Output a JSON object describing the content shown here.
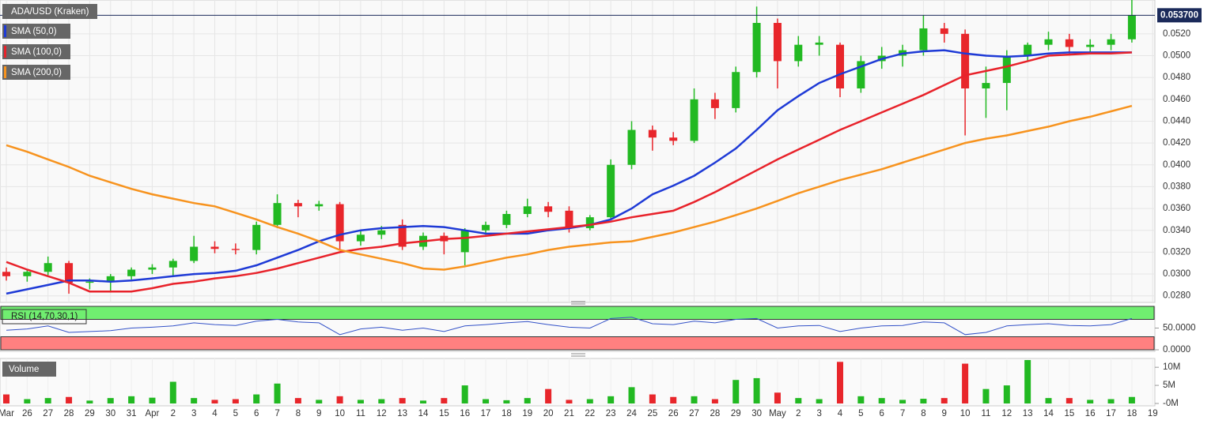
{
  "chart_data": {
    "type": "candlestick",
    "title": "ADA/USD (Kraken)",
    "categories": [
      "Mar",
      "26",
      "27",
      "28",
      "29",
      "30",
      "31",
      "Apr",
      "2",
      "3",
      "4",
      "5",
      "6",
      "7",
      "8",
      "9",
      "10",
      "11",
      "12",
      "13",
      "14",
      "15",
      "16",
      "17",
      "18",
      "19",
      "20",
      "21",
      "22",
      "23",
      "24",
      "25",
      "26",
      "27",
      "28",
      "29",
      "30",
      "May",
      "2",
      "3",
      "4",
      "5",
      "6",
      "7",
      "8",
      "9",
      "10",
      "11",
      "12",
      "13",
      "14",
      "15",
      "16",
      "17",
      "18",
      "19"
    ],
    "candles": [
      [
        0.0302,
        0.0306,
        0.0294,
        0.0298
      ],
      [
        0.0298,
        0.0304,
        0.0293,
        0.0302
      ],
      [
        0.0302,
        0.0316,
        0.0299,
        0.031
      ],
      [
        0.031,
        0.0312,
        0.0282,
        0.0292
      ],
      [
        0.0292,
        0.0296,
        0.0286,
        0.0293
      ],
      [
        0.0293,
        0.03,
        0.0283,
        0.0298
      ],
      [
        0.0298,
        0.0306,
        0.0295,
        0.0304
      ],
      [
        0.0304,
        0.0309,
        0.03,
        0.0306
      ],
      [
        0.0306,
        0.0314,
        0.0298,
        0.0312
      ],
      [
        0.0312,
        0.0335,
        0.031,
        0.0325
      ],
      [
        0.0325,
        0.033,
        0.0319,
        0.0323
      ],
      [
        0.0323,
        0.0328,
        0.0318,
        0.0322
      ],
      [
        0.0322,
        0.0348,
        0.0318,
        0.0345
      ],
      [
        0.0345,
        0.0373,
        0.0342,
        0.0365
      ],
      [
        0.0365,
        0.0368,
        0.0352,
        0.0362
      ],
      [
        0.0362,
        0.0367,
        0.0358,
        0.0364
      ],
      [
        0.0364,
        0.0366,
        0.0322,
        0.033
      ],
      [
        0.033,
        0.034,
        0.0326,
        0.0336
      ],
      [
        0.0336,
        0.0344,
        0.0332,
        0.034
      ],
      [
        0.0345,
        0.035,
        0.0322,
        0.0325
      ],
      [
        0.0325,
        0.0338,
        0.0322,
        0.0335
      ],
      [
        0.0335,
        0.0338,
        0.0318,
        0.033
      ],
      [
        0.032,
        0.0342,
        0.0308,
        0.034
      ],
      [
        0.034,
        0.0348,
        0.0336,
        0.0345
      ],
      [
        0.0345,
        0.0358,
        0.0342,
        0.0355
      ],
      [
        0.0355,
        0.0369,
        0.0352,
        0.0362
      ],
      [
        0.0362,
        0.0366,
        0.0352,
        0.0357
      ],
      [
        0.0358,
        0.0362,
        0.0338,
        0.0342
      ],
      [
        0.0342,
        0.0354,
        0.034,
        0.0352
      ],
      [
        0.0352,
        0.0405,
        0.035,
        0.04
      ],
      [
        0.04,
        0.044,
        0.0396,
        0.0432
      ],
      [
        0.0432,
        0.0436,
        0.0413,
        0.0425
      ],
      [
        0.0425,
        0.043,
        0.0418,
        0.0422
      ],
      [
        0.0422,
        0.047,
        0.042,
        0.046
      ],
      [
        0.046,
        0.0466,
        0.0442,
        0.0452
      ],
      [
        0.0452,
        0.049,
        0.0448,
        0.0485
      ],
      [
        0.0485,
        0.0545,
        0.048,
        0.053
      ],
      [
        0.053,
        0.0534,
        0.047,
        0.0495
      ],
      [
        0.0495,
        0.0518,
        0.049,
        0.051
      ],
      [
        0.051,
        0.0518,
        0.05,
        0.0512
      ],
      [
        0.051,
        0.0512,
        0.0462,
        0.047
      ],
      [
        0.047,
        0.05,
        0.0466,
        0.0495
      ],
      [
        0.0495,
        0.0508,
        0.0488,
        0.05
      ],
      [
        0.05,
        0.051,
        0.049,
        0.0505
      ],
      [
        0.0505,
        0.0537,
        0.05,
        0.0525
      ],
      [
        0.0525,
        0.053,
        0.0512,
        0.052
      ],
      [
        0.052,
        0.0524,
        0.0427,
        0.047
      ],
      [
        0.047,
        0.049,
        0.0443,
        0.0475
      ],
      [
        0.0475,
        0.0505,
        0.045,
        0.05
      ],
      [
        0.05,
        0.0512,
        0.0495,
        0.051
      ],
      [
        0.051,
        0.0522,
        0.0505,
        0.0515
      ],
      [
        0.0515,
        0.052,
        0.05,
        0.0508
      ],
      [
        0.0508,
        0.0515,
        0.0502,
        0.051
      ],
      [
        0.051,
        0.052,
        0.0505,
        0.0515
      ],
      [
        0.0515,
        0.0552,
        0.0512,
        0.0537
      ],
      null
    ],
    "up_color": "#22b922",
    "down_color": "#e8262b",
    "ylim": [
      0.0274,
      0.0551
    ],
    "yticks": [
      {
        "value": 0.028,
        "label": "0.0280"
      },
      {
        "value": 0.03,
        "label": "0.0300"
      },
      {
        "value": 0.032,
        "label": "0.0320"
      },
      {
        "value": 0.034,
        "label": "0.0340"
      },
      {
        "value": 0.036,
        "label": "0.0360"
      },
      {
        "value": 0.038,
        "label": "0.0380"
      },
      {
        "value": 0.04,
        "label": "0.0400"
      },
      {
        "value": 0.042,
        "label": "0.0420"
      },
      {
        "value": 0.044,
        "label": "0.0440"
      },
      {
        "value": 0.046,
        "label": "0.0460"
      },
      {
        "value": 0.048,
        "label": "0.0480"
      },
      {
        "value": 0.05,
        "label": "0.0500"
      },
      {
        "value": 0.052,
        "label": "0.0520"
      }
    ],
    "grid": true,
    "last_price": 0.0537,
    "last_price_label": "0.053700",
    "last_price_color": "#1b2a5a",
    "series": [
      {
        "name": "SMA (50,0)",
        "color": "#1e3ad6",
        "values": [
          0.0282,
          0.0286,
          0.029,
          0.0294,
          0.0294,
          0.0293,
          0.0294,
          0.0296,
          0.0298,
          0.03,
          0.0301,
          0.0303,
          0.0308,
          0.0315,
          0.0322,
          0.033,
          0.0336,
          0.034,
          0.0342,
          0.0343,
          0.0344,
          0.0343,
          0.034,
          0.0337,
          0.0337,
          0.0337,
          0.034,
          0.0342,
          0.0345,
          0.035,
          0.036,
          0.0373,
          0.0381,
          0.039,
          0.0402,
          0.0415,
          0.0432,
          0.045,
          0.0463,
          0.0475,
          0.0483,
          0.049,
          0.0497,
          0.0502,
          0.0504,
          0.0505,
          0.0502,
          0.05,
          0.0499,
          0.05,
          0.0502,
          0.0503,
          0.0503,
          0.0503,
          0.0503,
          null
        ]
      },
      {
        "name": "SMA (100,0)",
        "color": "#e8222a",
        "values": [
          0.0311,
          0.0304,
          0.0298,
          0.0292,
          0.0284,
          0.0284,
          0.0284,
          0.0287,
          0.0291,
          0.0293,
          0.0296,
          0.0298,
          0.0301,
          0.0305,
          0.031,
          0.0315,
          0.032,
          0.0323,
          0.0325,
          0.0328,
          0.033,
          0.0332,
          0.0333,
          0.0335,
          0.0337,
          0.0339,
          0.0341,
          0.0343,
          0.0345,
          0.0348,
          0.0352,
          0.0355,
          0.0358,
          0.0366,
          0.0375,
          0.0385,
          0.0395,
          0.0405,
          0.0414,
          0.0423,
          0.0432,
          0.044,
          0.0448,
          0.0456,
          0.0464,
          0.0473,
          0.0482,
          0.0486,
          0.049,
          0.0495,
          0.05,
          0.0501,
          0.0502,
          0.0502,
          0.0503,
          null
        ]
      },
      {
        "name": "SMA (200,0)",
        "color": "#f7931e",
        "values": [
          0.0418,
          0.0412,
          0.0405,
          0.0398,
          0.039,
          0.0384,
          0.0378,
          0.0373,
          0.0369,
          0.0365,
          0.0362,
          0.0356,
          0.035,
          0.0343,
          0.0337,
          0.033,
          0.0322,
          0.0318,
          0.0314,
          0.031,
          0.0305,
          0.0304,
          0.0307,
          0.0311,
          0.0315,
          0.0318,
          0.0322,
          0.0325,
          0.0327,
          0.0329,
          0.033,
          0.0334,
          0.0338,
          0.0343,
          0.0348,
          0.0354,
          0.036,
          0.0367,
          0.0374,
          0.038,
          0.0386,
          0.0391,
          0.0396,
          0.0402,
          0.0408,
          0.0414,
          0.042,
          0.0424,
          0.0427,
          0.0431,
          0.0435,
          0.044,
          0.0444,
          0.0449,
          0.0454,
          null
        ]
      }
    ],
    "rsi": {
      "name": "RSI (14,70,30,1)",
      "color": "#3352c8",
      "values": [
        45,
        48,
        55,
        40,
        42,
        44,
        50,
        52,
        55,
        62,
        58,
        56,
        66,
        70,
        64,
        62,
        35,
        48,
        52,
        45,
        50,
        42,
        55,
        58,
        62,
        65,
        58,
        52,
        50,
        72,
        75,
        60,
        58,
        66,
        62,
        70,
        72,
        50,
        55,
        56,
        42,
        50,
        55,
        56,
        64,
        62,
        35,
        40,
        55,
        58,
        60,
        56,
        55,
        58,
        72,
        null
      ],
      "ylim": [
        0,
        100
      ],
      "yticks": [
        {
          "value": 0,
          "label": "0.0000"
        },
        {
          "value": 50,
          "label": "50.0000"
        }
      ],
      "overbought": 70,
      "oversold": 30,
      "overbought_color": "#70ee70",
      "oversold_color": "#ff8080"
    },
    "volume": {
      "name": "Volume",
      "values": [
        2500000,
        1200000,
        1500000,
        1800000,
        800000,
        1500000,
        2000000,
        1600000,
        6000000,
        1500000,
        1000000,
        1200000,
        2500000,
        5500000,
        1500000,
        1000000,
        2000000,
        1000000,
        1200000,
        1500000,
        800000,
        1500000,
        5000000,
        1200000,
        900000,
        1500000,
        4000000,
        1000000,
        1200000,
        2000000,
        4500000,
        2500000,
        1800000,
        2000000,
        1200000,
        6500000,
        7000000,
        3000000,
        1500000,
        1200000,
        11500000,
        2000000,
        1500000,
        1000000,
        1300000,
        1500000,
        11000000,
        4000000,
        5000000,
        12000000,
        1500000,
        1500000,
        1000000,
        1200000,
        1800000,
        null
      ],
      "ylim": [
        0,
        12000000
      ],
      "yticks": [
        {
          "value": 0,
          "label": "-0M"
        },
        {
          "value": 5000000,
          "label": "5M"
        },
        {
          "value": 10000000,
          "label": "10M"
        }
      ]
    }
  }
}
